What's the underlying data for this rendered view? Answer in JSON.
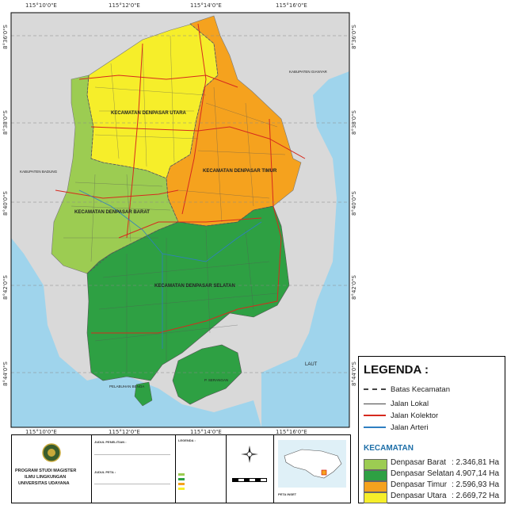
{
  "coords": {
    "top": [
      "115°10'0\"E",
      "115°12'0\"E",
      "115°14'0\"E",
      "115°16'0\"E"
    ],
    "bottom": [
      "115°10'0\"E",
      "115°12'0\"E",
      "115°14'0\"E",
      "115°16'0\"E"
    ],
    "left": [
      "8°36'0\"S",
      "8°38'0\"S",
      "8°40'0\"S",
      "8°42'0\"S",
      "8°44'0\"S"
    ],
    "right": [
      "8°36'0\"S",
      "8°38'0\"S",
      "8°40'0\"S",
      "8°42'0\"S",
      "8°44'0\"S"
    ]
  },
  "map_labels": {
    "utara": "KECAMATAN DENPASAR UTARA",
    "timur": "KECAMATAN DENPASAR TIMUR",
    "barat": "KECAMATAN DENPASAR BARAT",
    "selatan": "KECAMATAN DENPASAR SELATAN",
    "gianyar": "KABUPATEN GIANYAR",
    "badung": "KABUPATEN BADUNG",
    "serangan": "P. SERANGAN",
    "benoa": "PELABUHAN BENOA",
    "laut": "LAUT"
  },
  "legend": {
    "title": "LEGENDA :",
    "lines": [
      {
        "label": "Batas Kecamatan",
        "color": "#444444",
        "style": "dashed"
      },
      {
        "label": "Jalan Lokal",
        "color": "#444444",
        "style": "solid"
      },
      {
        "label": "Jalan Kolektor",
        "color": "#d62a1e",
        "style": "solid"
      },
      {
        "label": "Jalan Arteri",
        "color": "#2f7fc1",
        "style": "solid"
      }
    ],
    "kecamatan_title": "KECAMATAN",
    "kecamatan": [
      {
        "name": "Denpasar Barat",
        "value": ": 2.346,81 Ha",
        "color": "#9ccc52"
      },
      {
        "name": "Denpasar Selatan",
        "value": ": 4.907,14 Ha",
        "color": "#2ea043"
      },
      {
        "name": "Denpasar Timur",
        "value": ": 2.596,93 Ha",
        "color": "#f5a21e"
      },
      {
        "name": "Denpasar Utara",
        "value": ": 2.669,72 Ha",
        "color": "#f6ee2a"
      }
    ]
  },
  "info_panel": {
    "institution_1": "PROGRAM STUDI MAGISTER",
    "institution_2": "ILMU LINGKUNGAN",
    "institution_3": "UNIVERSITAS UDAYANA",
    "judul_penelitian": "JUDUL PENELITIAN :",
    "judul_peta": "JUDUL PETA :",
    "legenda_small": "LEGENDA :",
    "peta_inset": "PETA INSET"
  },
  "colors": {
    "sea": "#9fd4ec",
    "land_outside": "#d9d9d9",
    "utara": "#f6ee2a",
    "timur": "#f5a21e",
    "barat": "#9ccc52",
    "selatan": "#2ea043"
  }
}
